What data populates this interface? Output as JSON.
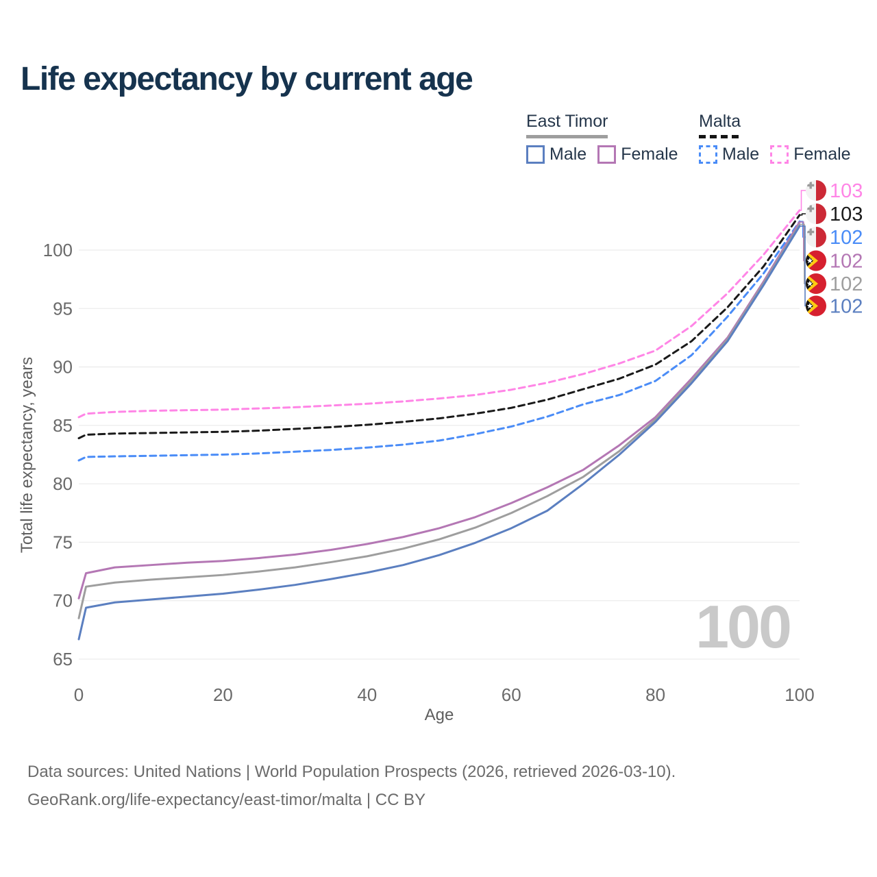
{
  "title": "Life expectancy by current age",
  "legend": {
    "groups": [
      {
        "name": "East Timor",
        "line_style": "solid",
        "underline_color": "#9e9e9e",
        "items": [
          {
            "label": "Male",
            "color": "#5b7fc0",
            "dashed": false
          },
          {
            "label": "Female",
            "color": "#b477b4",
            "dashed": false
          }
        ]
      },
      {
        "name": "Malta",
        "line_style": "dashed",
        "underline_color": "#141414",
        "items": [
          {
            "label": "Male",
            "color": "#4a8cf7",
            "dashed": true
          },
          {
            "label": "Female",
            "color": "#ff85e6",
            "dashed": true
          }
        ]
      }
    ]
  },
  "chart_data": {
    "type": "line",
    "title": "Life expectancy by current age",
    "xlabel": "Age",
    "ylabel": "Total life expectancy, years",
    "xlim": [
      0,
      100
    ],
    "ylim": [
      65,
      103.5
    ],
    "x_ticks": [
      0,
      20,
      40,
      60,
      80,
      100
    ],
    "y_ticks": [
      65,
      70,
      75,
      80,
      85,
      90,
      95,
      100
    ],
    "grid": "horizontal",
    "gridline_color": "#ececec",
    "tick_color": "#6a6a6a",
    "axis_title_color": "#5e5e5e",
    "watermark": "100",
    "watermark_color": "#c9c9c9",
    "x": [
      0,
      1,
      5,
      10,
      15,
      20,
      25,
      30,
      35,
      40,
      45,
      50,
      55,
      60,
      65,
      70,
      75,
      80,
      85,
      90,
      95,
      100
    ],
    "series": [
      {
        "name": "Malta Female",
        "country": "Malta",
        "sex": "Female",
        "flag": "malta",
        "color": "#ff85e6",
        "dashed": true,
        "end_label": "103",
        "values": [
          85.7,
          86.0,
          86.15,
          86.25,
          86.3,
          86.35,
          86.45,
          86.55,
          86.7,
          86.85,
          87.05,
          87.3,
          87.6,
          88.05,
          88.65,
          89.4,
          90.3,
          91.4,
          93.5,
          96.3,
          99.6,
          103.4
        ]
      },
      {
        "name": "Malta Both sexes",
        "country": "Malta",
        "sex": "Both",
        "flag": "malta",
        "color": "#1a1a1a",
        "dashed": true,
        "end_label": "103",
        "values": [
          83.9,
          84.2,
          84.3,
          84.35,
          84.4,
          84.45,
          84.55,
          84.7,
          84.85,
          85.05,
          85.3,
          85.6,
          86.0,
          86.5,
          87.2,
          88.1,
          89.0,
          90.2,
          92.2,
          95.1,
          98.6,
          103.0
        ]
      },
      {
        "name": "Malta Male",
        "country": "Malta",
        "sex": "Male",
        "flag": "malta",
        "color": "#4a8cf7",
        "dashed": true,
        "end_label": "102",
        "values": [
          82.0,
          82.3,
          82.35,
          82.4,
          82.45,
          82.5,
          82.6,
          82.75,
          82.9,
          83.1,
          83.35,
          83.7,
          84.25,
          84.9,
          85.75,
          86.8,
          87.6,
          88.8,
          91.0,
          94.3,
          98.0,
          102.45
        ]
      },
      {
        "name": "East Timor Female",
        "country": "East Timor",
        "sex": "Female",
        "flag": "east-timor",
        "color": "#b477b4",
        "dashed": false,
        "end_label": "102",
        "values": [
          70.2,
          72.35,
          72.85,
          73.05,
          73.25,
          73.4,
          73.65,
          73.95,
          74.35,
          74.85,
          75.45,
          76.2,
          77.15,
          78.35,
          79.7,
          81.2,
          83.3,
          85.7,
          89.0,
          92.5,
          97.3,
          102.4
        ]
      },
      {
        "name": "East Timor Both sexes",
        "country": "East Timor",
        "sex": "Both",
        "flag": "east-timor",
        "color": "#9e9e9e",
        "dashed": false,
        "end_label": "102",
        "values": [
          68.5,
          71.2,
          71.55,
          71.8,
          72.0,
          72.2,
          72.5,
          72.85,
          73.3,
          73.8,
          74.45,
          75.25,
          76.25,
          77.5,
          78.95,
          80.6,
          82.8,
          85.5,
          88.8,
          92.35,
          97.15,
          102.2
        ]
      },
      {
        "name": "East Timor Male",
        "country": "East Timor",
        "sex": "Male",
        "flag": "east-timor",
        "color": "#5b7fc0",
        "dashed": false,
        "end_label": "102",
        "values": [
          66.7,
          69.4,
          69.85,
          70.1,
          70.35,
          70.6,
          70.95,
          71.35,
          71.85,
          72.4,
          73.05,
          73.9,
          74.95,
          76.2,
          77.7,
          80.0,
          82.5,
          85.3,
          88.6,
          92.2,
          97.0,
          102.05
        ]
      }
    ],
    "flag_colors": {
      "malta_white": "#f2f2f2",
      "malta_red": "#cc2936",
      "malta_cross": "#9b9b9b",
      "east_timor_red": "#d6202f",
      "east_timor_yellow": "#ffcc12",
      "east_timor_black": "#141414",
      "east_timor_star": "#ffffff"
    }
  },
  "footer": {
    "line1": "Data sources: United Nations | World Population Prospects (2026, retrieved 2026-03-10).",
    "line2": "GeoRank.org/life-expectancy/east-timor/malta | CC BY"
  }
}
